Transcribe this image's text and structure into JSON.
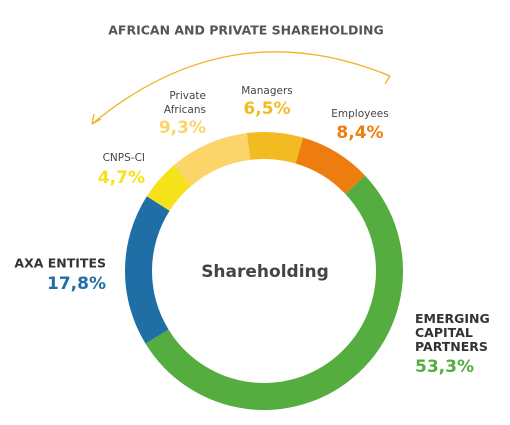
{
  "chart_data": {
    "type": "donut",
    "title": "AFRICAN AND PRIVATE SHAREHOLDING",
    "center_label": "Shareholding",
    "categories": [
      "EMERGING CAPITAL PARTNERS",
      "AXA ENTITES",
      "CNPS-CI",
      "Private Africans",
      "Managers",
      "Employees"
    ],
    "values": [
      53.3,
      17.8,
      4.7,
      9.3,
      6.5,
      8.4
    ],
    "value_labels": [
      "53,3%",
      "17,8%",
      "4,7%",
      "9,3%",
      "6,5%",
      "8,4%"
    ],
    "colors": [
      "#55ac3f",
      "#1f6fa6",
      "#f5e21a",
      "#fbd46a",
      "#f2bb22",
      "#ee7d0f"
    ]
  }
}
